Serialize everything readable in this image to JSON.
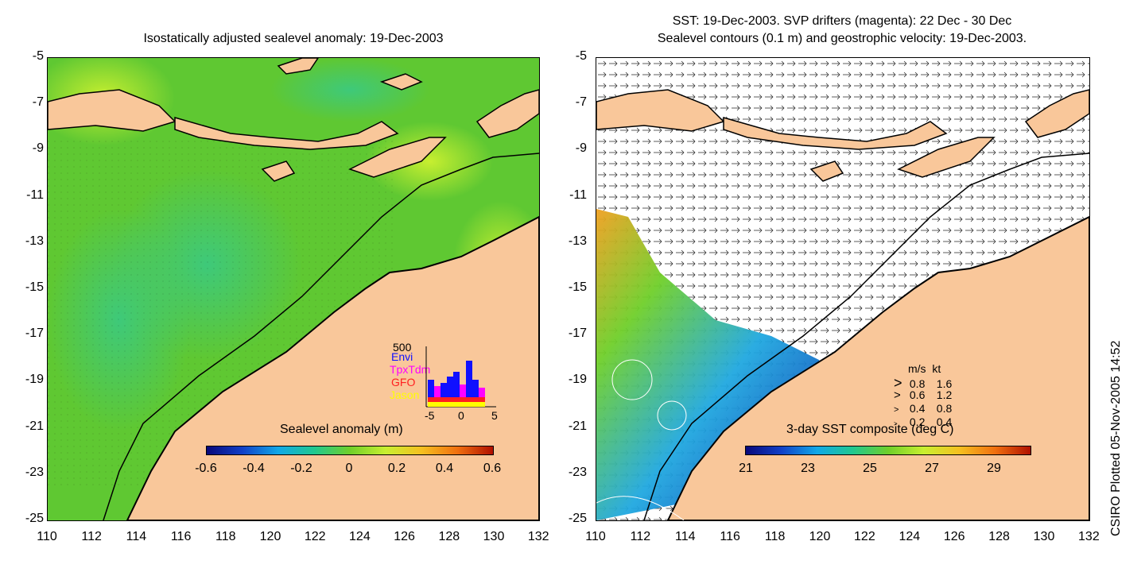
{
  "left_panel": {
    "title": "Isostatically adjusted sealevel anomaly: 19-Dec-2003",
    "colorbar": {
      "label": "Sealevel anomaly (m)",
      "ticks": [
        "-0.6",
        "-0.4",
        "-0.2",
        "0",
        "0.2",
        "0.4",
        "0.6"
      ]
    },
    "histogram": {
      "ymax_label": "500",
      "legend": [
        {
          "name": "Envi",
          "color": "#1010ff"
        },
        {
          "name": "TpxTdm",
          "color": "#ff00ff"
        },
        {
          "name": "GFO",
          "color": "#ff2020"
        },
        {
          "name": "Jason",
          "color": "#ffff00"
        }
      ],
      "xticks": [
        "-5",
        "0",
        "5"
      ]
    }
  },
  "right_panel": {
    "title_line1": "SST: 19-Dec-2003. SVP drifters (magenta): 22 Dec - 30 Dec",
    "title_line2": "Sealevel contours (0.1 m) and geostrophic velocity: 19-Dec-2003.",
    "colorbar": {
      "label": "3-day SST composite (deg C)",
      "ticks": [
        "21",
        "23",
        "25",
        "27",
        "29"
      ]
    },
    "velocity_legend": {
      "header": "m/s  kt",
      "rows": [
        {
          "arrow": ">",
          "ms": "0.8",
          "kt": "1.6"
        },
        {
          "arrow": ">",
          "ms": "0.6",
          "kt": "1.2"
        },
        {
          "arrow": ">",
          "ms": "0.4",
          "kt": "0.8"
        },
        {
          "arrow": ">",
          "ms": "0.2",
          "kt": "0.4"
        }
      ]
    }
  },
  "axes": {
    "y_ticks": [
      "-5",
      "-7",
      "-9",
      "-11",
      "-13",
      "-15",
      "-17",
      "-19",
      "-21",
      "-23",
      "-25"
    ],
    "x_ticks": [
      "110",
      "112",
      "114",
      "116",
      "118",
      "120",
      "122",
      "124",
      "126",
      "128",
      "130",
      "132"
    ]
  },
  "side_note": "CSIRO Plotted 05-Nov-2005 14:52",
  "colors": {
    "land": "#f9c79a",
    "ocean_green": "#6fcf2a",
    "ocean_light": "#a8e43a"
  }
}
